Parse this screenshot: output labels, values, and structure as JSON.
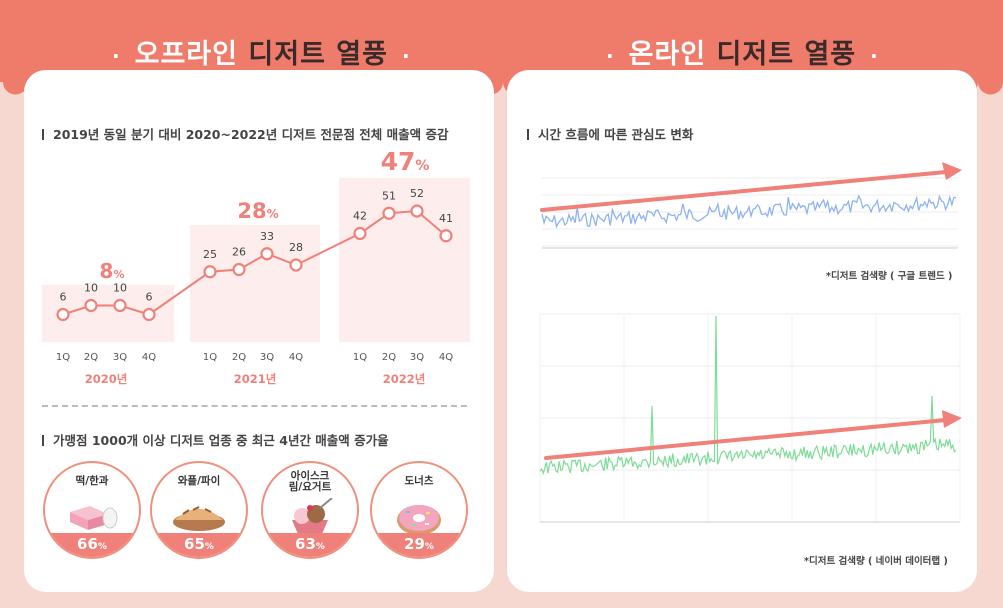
{
  "header": {
    "left_title_accent": "오프라인",
    "left_title_dark": "디저트 열풍",
    "right_title_accent": "온라인",
    "right_title_dark": "디저트 열풍",
    "dot": "·"
  },
  "colors": {
    "header": "#ef7b6b",
    "accent": "#f0807a",
    "quarter_bg": "#fdeeed",
    "google_line": "#8fb3ef",
    "naver_line": "#7edc96",
    "trend_arrow": "#f0807a"
  },
  "offline": {
    "section1_title": "2019년 동일 분기 대비 2020~2022년 디저트 전문점 전체 매출액 증감",
    "section2_title": "가맹점 1000개 이상 디저트 업종 중 최근 4년간 매출액 증가율",
    "categories": [
      {
        "name": "떡/한과",
        "pct": "66",
        "unit": "%",
        "icon": "rice-cake-icon"
      },
      {
        "name": "와플/파이",
        "pct": "65",
        "unit": "%",
        "icon": "pie-icon"
      },
      {
        "name": "아이스크림/요거트",
        "pct": "63",
        "unit": "%",
        "icon": "ice-cream-icon"
      },
      {
        "name": "도너츠",
        "pct": "29",
        "unit": "%",
        "icon": "donut-icon"
      }
    ]
  },
  "online": {
    "section_title": "시간 흐름에 따른 관심도 변화",
    "google_note": "*디저트 검색량 ( 구글 트렌드 )",
    "naver_note": "*디저트 검색량 ( 네이버 데이터랩 )"
  },
  "chart_data": [
    {
      "type": "line",
      "title": "2019년 동일 분기 대비 2020~2022년 디저트 전문점 전체 매출액 증감",
      "categories": [
        "1Q",
        "2Q",
        "3Q",
        "4Q",
        "1Q",
        "2Q",
        "3Q",
        "4Q",
        "1Q",
        "2Q",
        "3Q",
        "4Q"
      ],
      "quarter_labels": [
        "1Q",
        "2Q",
        "3Q",
        "4Q"
      ],
      "years": [
        "2020년",
        "2021년",
        "2022년"
      ],
      "year_totals": [
        {
          "num": "8",
          "unit": "%"
        },
        {
          "num": "28",
          "unit": "%"
        },
        {
          "num": "47",
          "unit": "%"
        }
      ],
      "series": [
        {
          "values": [
            6,
            10,
            10,
            6,
            25,
            26,
            33,
            28,
            42,
            51,
            52,
            41
          ]
        }
      ],
      "ylim": [
        0,
        60
      ]
    },
    {
      "type": "line",
      "source": "*디저트 검색량 ( 구글 트렌드 )",
      "trend": "increasing",
      "ylim": [
        0,
        100
      ]
    },
    {
      "type": "line",
      "source": "*디저트 검색량 ( 네이버 데이터랩 )",
      "trend": "increasing",
      "ylim": [
        0,
        100
      ]
    }
  ]
}
